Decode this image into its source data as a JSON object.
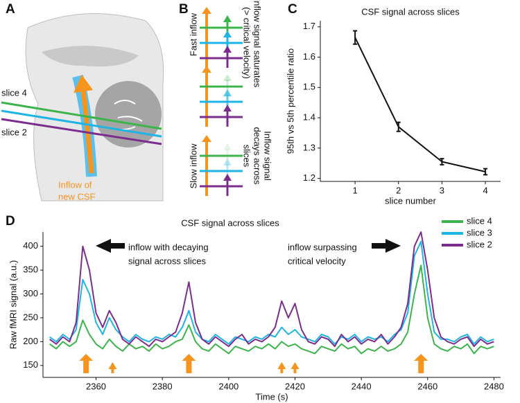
{
  "panel_labels": [
    "A",
    "B",
    "C",
    "D"
  ],
  "panel_a": {
    "slice_top": "slice 4",
    "slice_bottom": "slice 2",
    "inflow_label": [
      "Inflow of",
      "new CSF"
    ]
  },
  "panel_b": {
    "fast": "Fast inflow",
    "slow": "Slow inflow",
    "fast_note": [
      "Inflow signal saturates",
      "(> critical velocity)"
    ],
    "slow_note": [
      "Inflow signal",
      "decays across",
      "slices"
    ]
  },
  "chart_data": [
    {
      "type": "line",
      "title": "CSF signal across slices",
      "x_label": "slice number",
      "y_label": "95th vs 5th percentile ratio",
      "x": [
        1,
        2,
        3,
        4
      ],
      "values": [
        1.665,
        1.37,
        1.255,
        1.222
      ],
      "errors": [
        0.022,
        0.015,
        0.01,
        0.01
      ],
      "color": "#111111",
      "xlim": [
        0.2,
        4.35
      ],
      "xticks": [
        1,
        2,
        3,
        4
      ],
      "ylim": [
        1.19,
        1.72
      ],
      "yticks": [
        1.2,
        1.3,
        1.4,
        1.5,
        1.6,
        1.7
      ]
    },
    {
      "type": "line",
      "title": "CSF signal across slices",
      "x_label": "Time (s)",
      "y_label": "Raw fMRI signal (a.u.)",
      "annotations": [
        "inflow with decaying",
        "signal across slices",
        "inflow surpassing",
        "critical velocity"
      ],
      "inflow_arrows": [
        {
          "x": 2357,
          "size": "large"
        },
        {
          "x": 2365,
          "size": "small"
        },
        {
          "x": 2388,
          "size": "large"
        },
        {
          "x": 2416,
          "size": "small"
        },
        {
          "x": 2420,
          "size": "small"
        },
        {
          "x": 2458,
          "size": "large"
        }
      ],
      "arrow_color": "#f7941d",
      "x": [
        2346,
        2348,
        2350,
        2352,
        2354,
        2356,
        2358,
        2360,
        2362,
        2364,
        2366,
        2368,
        2370,
        2372,
        2374,
        2376,
        2378,
        2380,
        2382,
        2384,
        2386,
        2388,
        2390,
        2392,
        2394,
        2396,
        2398,
        2400,
        2402,
        2404,
        2406,
        2408,
        2410,
        2412,
        2414,
        2416,
        2418,
        2420,
        2422,
        2424,
        2426,
        2428,
        2430,
        2432,
        2434,
        2436,
        2438,
        2440,
        2442,
        2444,
        2446,
        2448,
        2450,
        2452,
        2454,
        2456,
        2458,
        2460,
        2462,
        2464,
        2466,
        2468,
        2470,
        2472,
        2474,
        2476,
        2478,
        2480
      ],
      "series": [
        {
          "name": "slice 4",
          "color": "#3cb44b",
          "values": [
            195,
            185,
            200,
            190,
            200,
            245,
            215,
            195,
            185,
            205,
            190,
            180,
            195,
            185,
            190,
            180,
            195,
            185,
            190,
            200,
            205,
            235,
            200,
            185,
            180,
            195,
            185,
            175,
            190,
            185,
            180,
            190,
            185,
            195,
            185,
            200,
            190,
            195,
            185,
            180,
            175,
            190,
            185,
            180,
            195,
            185,
            190,
            175,
            185,
            180,
            190,
            180,
            185,
            195,
            220,
            300,
            360,
            250,
            195,
            185,
            180,
            190,
            185,
            195,
            175,
            190,
            185,
            190
          ]
        },
        {
          "name": "slice 3",
          "color": "#1eb4e6",
          "values": [
            210,
            200,
            215,
            205,
            225,
            330,
            300,
            240,
            215,
            250,
            225,
            210,
            200,
            215,
            205,
            200,
            210,
            205,
            215,
            210,
            230,
            265,
            220,
            205,
            200,
            215,
            205,
            195,
            210,
            205,
            200,
            210,
            205,
            215,
            210,
            230,
            215,
            225,
            210,
            205,
            200,
            215,
            210,
            195,
            210,
            205,
            215,
            200,
            210,
            205,
            210,
            200,
            215,
            225,
            260,
            380,
            410,
            300,
            220,
            205,
            205,
            200,
            210,
            215,
            195,
            210,
            200,
            205
          ]
        },
        {
          "name": "slice 2",
          "color": "#7b2d8e",
          "values": [
            205,
            195,
            210,
            200,
            240,
            400,
            350,
            260,
            230,
            265,
            240,
            205,
            195,
            210,
            200,
            190,
            205,
            200,
            210,
            220,
            260,
            325,
            240,
            205,
            195,
            210,
            200,
            190,
            205,
            215,
            195,
            205,
            200,
            210,
            230,
            285,
            250,
            280,
            225,
            200,
            195,
            210,
            205,
            190,
            215,
            200,
            210,
            195,
            205,
            200,
            215,
            195,
            210,
            230,
            280,
            400,
            430,
            350,
            250,
            210,
            200,
            195,
            205,
            210,
            190,
            205,
            195,
            200
          ]
        }
      ],
      "xlim": [
        2344,
        2482
      ],
      "xticks": [
        2360,
        2380,
        2400,
        2420,
        2440,
        2460,
        2480
      ],
      "ylim": [
        125,
        430
      ],
      "yticks": [
        150,
        200,
        250,
        300,
        350,
        400
      ]
    }
  ]
}
